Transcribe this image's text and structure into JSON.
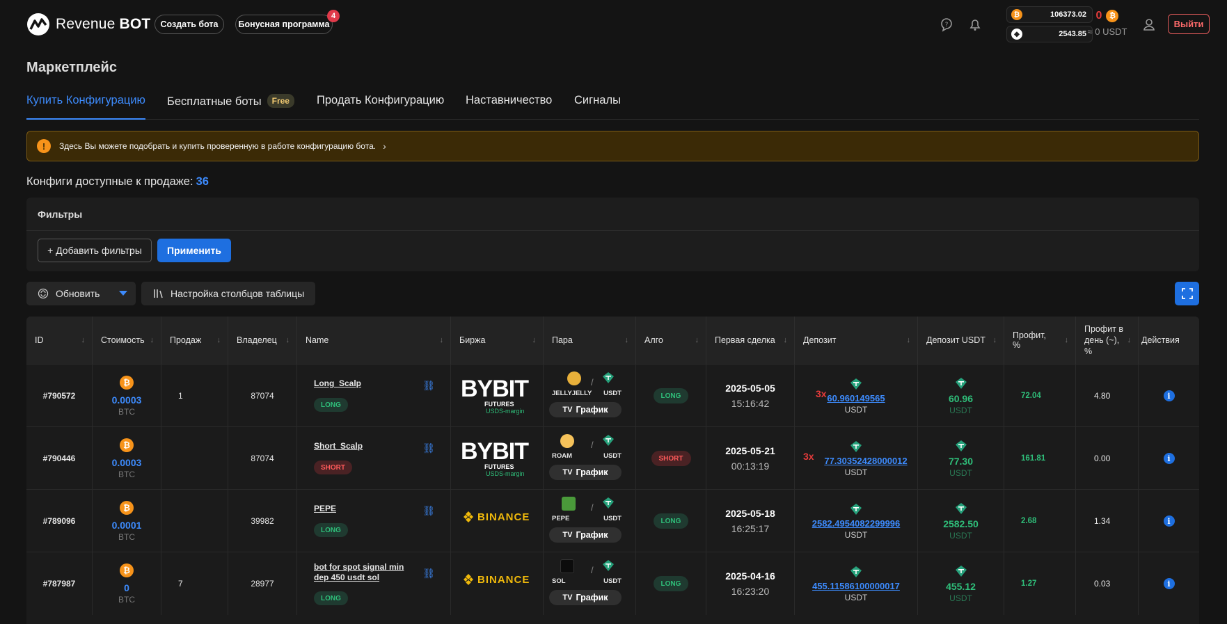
{
  "header": {
    "logo_text_light": "Revenue",
    "logo_text_bold": "BOT",
    "create_bot": "Создать бота",
    "bonus_program": "Бонусная программа",
    "bonus_badge": "4",
    "btc_balance": "106373.02",
    "eth_balance": "2543.85",
    "usdt_zero": "0",
    "usdt_approx": "≈ 0 USDT",
    "logout": "Выйти"
  },
  "page": {
    "title": "Маркетплейс",
    "tabs": [
      {
        "label": "Купить Конфигурацию",
        "active": true
      },
      {
        "label": "Бесплатные боты",
        "badge": "Free"
      },
      {
        "label": "Продать Конфигурацию"
      },
      {
        "label": "Наставничество"
      },
      {
        "label": "Сигналы"
      }
    ],
    "alert": "Здесь Вы можете подобрать и купить проверенную в работе конфигурацию бота.",
    "count_label": "Конфиги доступные к продаже:",
    "count_value": "36"
  },
  "filters": {
    "title": "Фильтры",
    "add": "+ Добавить фильтры",
    "apply": "Применить"
  },
  "toolbar": {
    "refresh": "Обновить",
    "columns": "Настройка столбцов таблицы"
  },
  "table": {
    "headers": [
      "ID",
      "Стоимость",
      "Продаж",
      "Владелец",
      "Name",
      "Биржа",
      "Пара",
      "Алго",
      "Первая сделка",
      "Депозит",
      "Депозит USDT",
      "Профит, %",
      "Профит в день (~), %",
      "Действия"
    ],
    "chart_label": "График",
    "rows": [
      {
        "id": "#790572",
        "cost": "0.0003",
        "cost_cur": "BTC",
        "sales": "1",
        "owner": "87074",
        "name": "Long_Scalp",
        "direction": "LONG",
        "exchange": "BYBIT",
        "base": "JELLYJELLY",
        "quote": "USDT",
        "algo": "LONG",
        "date": "2025-05-05",
        "time": "15:16:42",
        "leverage": "3x",
        "deposit": "60.960149565",
        "deposit_cur": "USDT",
        "deposit_usdt": "60.96",
        "deposit_usdt_cur": "USDT",
        "profit": "72.04",
        "profit_day": "4.80"
      },
      {
        "id": "#790446",
        "cost": "0.0003",
        "cost_cur": "BTC",
        "sales": "",
        "owner": "87074",
        "name": "Short_Scalp",
        "direction": "SHORT",
        "exchange": "BYBIT",
        "base": "ROAM",
        "quote": "USDT",
        "algo": "SHORT",
        "date": "2025-05-21",
        "time": "00:13:19",
        "leverage": "3x",
        "deposit": "77.30352428000012",
        "deposit_cur": "USDT",
        "deposit_usdt": "77.30",
        "deposit_usdt_cur": "USDT",
        "profit": "161.81",
        "profit_day": "0.00"
      },
      {
        "id": "#789096",
        "cost": "0.0001",
        "cost_cur": "BTC",
        "sales": "",
        "owner": "39982",
        "name": "PEPE",
        "direction": "LONG",
        "exchange": "BINANCE",
        "base": "PEPE",
        "quote": "USDT",
        "algo": "LONG",
        "date": "2025-05-18",
        "time": "16:25:17",
        "leverage": "",
        "deposit": "2582.4954082299996",
        "deposit_cur": "USDT",
        "deposit_usdt": "2582.50",
        "deposit_usdt_cur": "USDT",
        "profit": "2.68",
        "profit_day": "1.34"
      },
      {
        "id": "#787987",
        "cost": "0",
        "cost_cur": "BTC",
        "sales": "7",
        "owner": "28977",
        "name": "bot for spot signal min dep 450 usdt sol",
        "direction": "LONG",
        "exchange": "BINANCE",
        "base": "SOL",
        "quote": "USDT",
        "algo": "LONG",
        "date": "2025-04-16",
        "time": "16:23:20",
        "leverage": "",
        "deposit": "455.11586100000017",
        "deposit_cur": "USDT",
        "deposit_usdt": "455.12",
        "deposit_usdt_cur": "USDT",
        "profit": "1.27",
        "profit_day": "0.03"
      }
    ]
  },
  "exchange_labels": {
    "bybit_sub1": "FUTURES",
    "bybit_sub2": "USDS-margin"
  },
  "colors": {
    "accent": "#3d8bfd",
    "green": "#2fbf7a",
    "red": "#e53b3b",
    "btc": "#f7931a",
    "alert_bg": "#3b2a06"
  }
}
